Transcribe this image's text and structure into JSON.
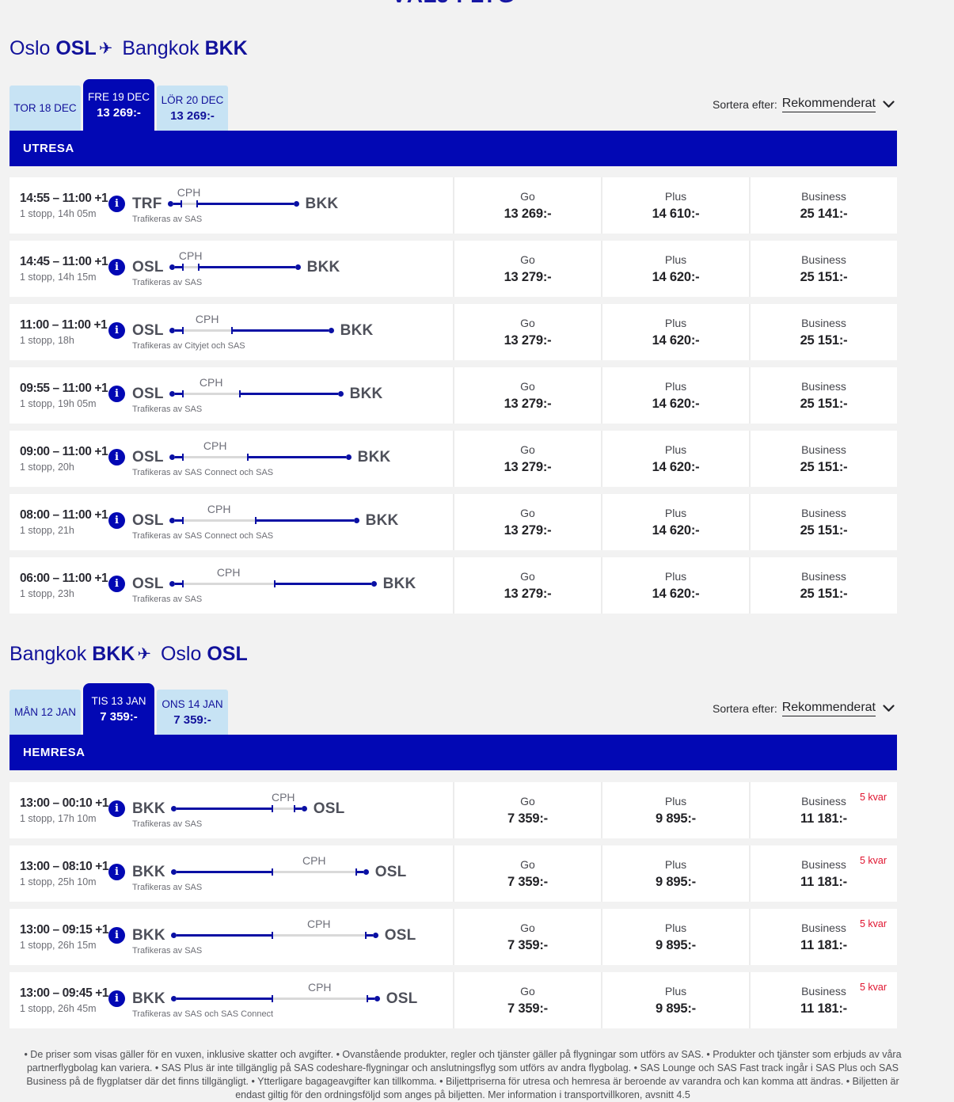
{
  "page": {
    "title": "VÄLJ FLYG",
    "sort": {
      "label": "Sortera efter:",
      "value": "Rekommenderat"
    },
    "footer": "• De priser som visas gäller för en vuxen, inklusive skatter och avgifter. • Ovanstående produkter, regler och tjänster gäller på flygningar som utförs av SAS. • Produkter och tjänster som erbjuds av våra partnerflygbolag kan variera. • SAS Plus är inte tillgänglig på SAS codeshare-flygningar och anslutningsflyg som utförs av andra flygbolag. • SAS Lounge och SAS Fast track ingår i SAS Plus och SAS Business på de flygplatser där det finns tillgängligt. • Ytterligare bagageavgifter kan tillkomma. • Biljettpriserna för utresa och hemresa är beroende av varandra och kan komma att ändras. • Biljetten är endast giltig för den ordningsföljd som anges på biljetten. Mer information i transportvillkoren, avsnitt 4.5",
    "colors": {
      "brand_blue": "#0208b4",
      "navy_text": "#12129b",
      "tab_light_blue": "#c7e3f4",
      "scarcity_red": "#e0142f"
    },
    "icons": {
      "info": "info-icon",
      "plane": "plane-icon",
      "chevron": "chevron-down-icon"
    }
  },
  "sections": [
    {
      "heading": {
        "city_from": "Oslo",
        "code_from": "OSL",
        "city_to": "Bangkok",
        "code_to": "BKK"
      },
      "band_label": "UTRESA",
      "tabs": [
        {
          "label": "TOR 18 DEC",
          "price": "",
          "active": false
        },
        {
          "label": "FRE 19 DEC",
          "price": "13 269:-",
          "active": true
        },
        {
          "label": "LÖR 20 DEC",
          "price": "13 269:-",
          "active": false
        }
      ],
      "flights": [
        {
          "times": "14:55 – 11:00 +1",
          "stops": "1 stopp, 14h 05m",
          "from": "TRF",
          "via": "CPH",
          "to": "BKK",
          "operator": "Trafikeras av SAS",
          "diagram": {
            "seg1": 9,
            "layover": 22,
            "seg2": 121
          },
          "scarcity": "",
          "fares": [
            {
              "label": "Go",
              "price": "13 269:-"
            },
            {
              "label": "Plus",
              "price": "14 610:-"
            },
            {
              "label": "Business",
              "price": "25 141:-"
            }
          ]
        },
        {
          "times": "14:45 – 11:00 +1",
          "stops": "1 stopp, 14h 15m",
          "from": "OSL",
          "via": "CPH",
          "to": "BKK",
          "operator": "Trafikeras av SAS",
          "diagram": {
            "seg1": 9,
            "layover": 22,
            "seg2": 121
          },
          "scarcity": "",
          "fares": [
            {
              "label": "Go",
              "price": "13 279:-"
            },
            {
              "label": "Plus",
              "price": "14 620:-"
            },
            {
              "label": "Business",
              "price": "25 151:-"
            }
          ]
        },
        {
          "times": "11:00 – 11:00 +1",
          "stops": "1 stopp, 18h",
          "from": "OSL",
          "via": "CPH",
          "to": "BKK",
          "operator": "Trafikeras av Cityjet och SAS",
          "diagram": {
            "seg1": 9,
            "layover": 64,
            "seg2": 121
          },
          "scarcity": "",
          "fares": [
            {
              "label": "Go",
              "price": "13 279:-"
            },
            {
              "label": "Plus",
              "price": "14 620:-"
            },
            {
              "label": "Business",
              "price": "25 151:-"
            }
          ]
        },
        {
          "times": "09:55 – 11:00 +1",
          "stops": "1 stopp, 19h 05m",
          "from": "OSL",
          "via": "CPH",
          "to": "BKK",
          "operator": "Trafikeras av SAS",
          "diagram": {
            "seg1": 9,
            "layover": 74,
            "seg2": 123
          },
          "scarcity": "",
          "fares": [
            {
              "label": "Go",
              "price": "13 279:-"
            },
            {
              "label": "Plus",
              "price": "14 620:-"
            },
            {
              "label": "Business",
              "price": "25 151:-"
            }
          ]
        },
        {
          "times": "09:00 – 11:00 +1",
          "stops": "1 stopp, 20h",
          "from": "OSL",
          "via": "CPH",
          "to": "BKK",
          "operator": "Trafikeras av SAS Connect och SAS",
          "diagram": {
            "seg1": 9,
            "layover": 84,
            "seg2": 123
          },
          "scarcity": "",
          "fares": [
            {
              "label": "Go",
              "price": "13 279:-"
            },
            {
              "label": "Plus",
              "price": "14 620:-"
            },
            {
              "label": "Business",
              "price": "25 151:-"
            }
          ]
        },
        {
          "times": "08:00 – 11:00 +1",
          "stops": "1 stopp, 21h",
          "from": "OSL",
          "via": "CPH",
          "to": "BKK",
          "operator": "Trafikeras av SAS Connect och SAS",
          "diagram": {
            "seg1": 9,
            "layover": 94,
            "seg2": 123
          },
          "scarcity": "",
          "fares": [
            {
              "label": "Go",
              "price": "13 279:-"
            },
            {
              "label": "Plus",
              "price": "14 620:-"
            },
            {
              "label": "Business",
              "price": "25 151:-"
            }
          ]
        },
        {
          "times": "06:00 – 11:00 +1",
          "stops": "1 stopp, 23h",
          "from": "OSL",
          "via": "CPH",
          "to": "BKK",
          "operator": "Trafikeras av SAS",
          "diagram": {
            "seg1": 9,
            "layover": 118,
            "seg2": 121
          },
          "scarcity": "",
          "fares": [
            {
              "label": "Go",
              "price": "13 279:-"
            },
            {
              "label": "Plus",
              "price": "14 620:-"
            },
            {
              "label": "Business",
              "price": "25 151:-"
            }
          ]
        }
      ]
    },
    {
      "heading": {
        "city_from": "Bangkok",
        "code_from": "BKK",
        "city_to": "Oslo",
        "code_to": "OSL"
      },
      "band_label": "HEMRESA",
      "tabs": [
        {
          "label": "MÅN 12 JAN",
          "price": "",
          "active": false
        },
        {
          "label": "TIS 13 JAN",
          "price": "7 359:-",
          "active": true
        },
        {
          "label": "ONS 14 JAN",
          "price": "7 359:-",
          "active": false
        }
      ],
      "flights": [
        {
          "times": "13:00 – 00:10 +1",
          "stops": "1 stopp, 17h 10m",
          "from": "BKK",
          "via": "CPH",
          "to": "OSL",
          "operator": "Trafikeras av SAS",
          "diagram": {
            "seg1": 120,
            "layover": 30,
            "seg2": 8
          },
          "scarcity": "5 kvar",
          "fares": [
            {
              "label": "Go",
              "price": "7 359:-"
            },
            {
              "label": "Plus",
              "price": "9 895:-"
            },
            {
              "label": "Business",
              "price": "11 181:-"
            }
          ]
        },
        {
          "times": "13:00 – 08:10 +1",
          "stops": "1 stopp, 25h 10m",
          "from": "BKK",
          "via": "CPH",
          "to": "OSL",
          "operator": "Trafikeras av SAS",
          "diagram": {
            "seg1": 120,
            "layover": 108,
            "seg2": 8
          },
          "scarcity": "5 kvar",
          "fares": [
            {
              "label": "Go",
              "price": "7 359:-"
            },
            {
              "label": "Plus",
              "price": "9 895:-"
            },
            {
              "label": "Business",
              "price": "11 181:-"
            }
          ]
        },
        {
          "times": "13:00 – 09:15 +1",
          "stops": "1 stopp, 26h 15m",
          "from": "BKK",
          "via": "CPH",
          "to": "OSL",
          "operator": "Trafikeras av SAS",
          "diagram": {
            "seg1": 120,
            "layover": 120,
            "seg2": 8
          },
          "scarcity": "5 kvar",
          "fares": [
            {
              "label": "Go",
              "price": "7 359:-"
            },
            {
              "label": "Plus",
              "price": "9 895:-"
            },
            {
              "label": "Business",
              "price": "11 181:-"
            }
          ]
        },
        {
          "times": "13:00 – 09:45 +1",
          "stops": "1 stopp, 26h 45m",
          "from": "BKK",
          "via": "CPH",
          "to": "OSL",
          "operator": "Trafikeras av SAS och SAS Connect",
          "diagram": {
            "seg1": 120,
            "layover": 122,
            "seg2": 8
          },
          "scarcity": "5 kvar",
          "fares": [
            {
              "label": "Go",
              "price": "7 359:-"
            },
            {
              "label": "Plus",
              "price": "9 895:-"
            },
            {
              "label": "Business",
              "price": "11 181:-"
            }
          ]
        }
      ]
    }
  ]
}
